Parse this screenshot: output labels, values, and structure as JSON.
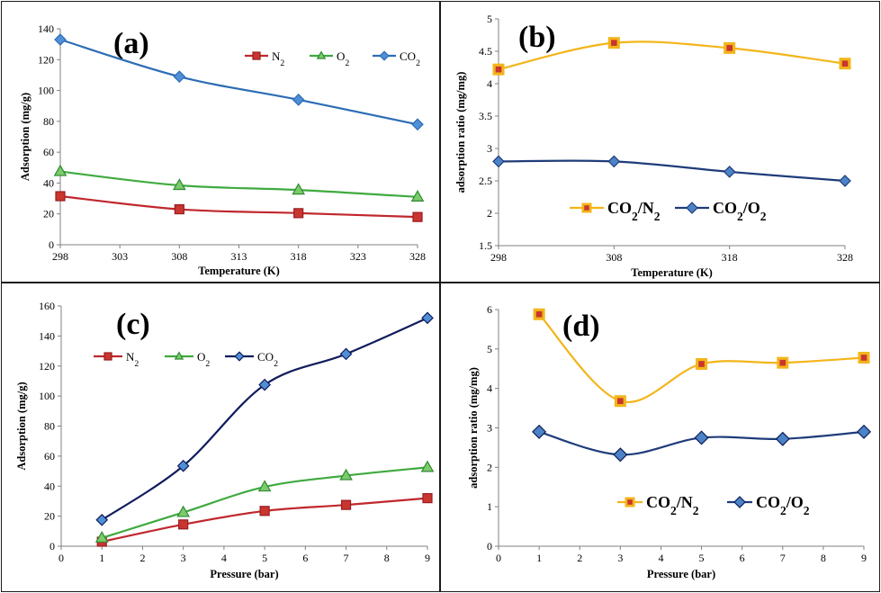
{
  "colors": {
    "N2": "#c0272d",
    "N2_marker": "#c8362f",
    "O2": "#3faa3f",
    "O2_marker": "#7ccb6a",
    "CO2": "#2d6db5",
    "CO2_marker": "#4f8fd6",
    "CO2_dark": "#101c5c",
    "ratio_N2": "#f3b51a",
    "ratio_N2_marker_fill": "#c8362f",
    "ratio_O2": "#1f3c7a",
    "ratio_O2_marker": "#4c83c7",
    "axis": "#808080"
  },
  "chart_data": [
    {
      "id": "a",
      "type": "line",
      "panel_label": "(a)",
      "xlabel": "Temperature (K)",
      "ylabel": "Adsorption (mg/g)",
      "xlim": [
        298,
        328
      ],
      "ylim": [
        0,
        140
      ],
      "xticks": [
        "298",
        "303",
        "308",
        "313",
        "318",
        "323",
        "328"
      ],
      "yticks": [
        "0",
        "20",
        "40",
        "60",
        "80",
        "100",
        "120",
        "140"
      ],
      "legend_position": "top-right",
      "series": [
        {
          "name": "N",
          "sub": "2",
          "x": [
            298,
            308,
            318,
            328
          ],
          "values": [
            31.5,
            23,
            20.5,
            18
          ]
        },
        {
          "name": "O",
          "sub": "2",
          "x": [
            298,
            308,
            318,
            328
          ],
          "values": [
            47.5,
            38.5,
            35.5,
            31
          ]
        },
        {
          "name": "CO",
          "sub": "2",
          "x": [
            298,
            308,
            318,
            328
          ],
          "values": [
            133,
            109,
            94,
            78
          ]
        }
      ]
    },
    {
      "id": "b",
      "type": "line",
      "panel_label": "(b)",
      "xlabel": "Temperature (K)",
      "ylabel": "adsorption ratio (mg/mg)",
      "xlim": [
        298,
        328
      ],
      "ylim": [
        1.5,
        5
      ],
      "xticks": [
        "298",
        "308",
        "318",
        "328"
      ],
      "yticks": [
        "1.5",
        "2",
        "2.5",
        "3",
        "3.5",
        "4",
        "4.5",
        "5"
      ],
      "legend_position": "lower-right",
      "series": [
        {
          "name": "CO",
          "sub": "2",
          "tail": "/N",
          "tailsub": "2",
          "x": [
            298,
            308,
            318,
            328
          ],
          "values": [
            4.22,
            4.63,
            4.55,
            4.31
          ]
        },
        {
          "name": "CO",
          "sub": "2",
          "tail": "/O",
          "tailsub": "2",
          "x": [
            298,
            308,
            318,
            328
          ],
          "values": [
            2.8,
            2.8,
            2.64,
            2.5
          ]
        }
      ]
    },
    {
      "id": "c",
      "type": "line",
      "panel_label": "(c)",
      "xlabel": "Pressure (bar)",
      "ylabel": "Adsorption (mg/g)",
      "xlim": [
        0,
        9
      ],
      "ylim": [
        0,
        160
      ],
      "xticks": [
        "0",
        "1",
        "2",
        "3",
        "4",
        "5",
        "6",
        "7",
        "8",
        "9"
      ],
      "yticks": [
        "0",
        "20",
        "40",
        "60",
        "80",
        "100",
        "120",
        "140",
        "160"
      ],
      "legend_position": "top-left",
      "series": [
        {
          "name": "N",
          "sub": "2",
          "x": [
            1,
            3,
            5,
            7,
            9
          ],
          "values": [
            3,
            14.5,
            23.5,
            27.5,
            32
          ]
        },
        {
          "name": "O",
          "sub": "2",
          "x": [
            1,
            3,
            5,
            7,
            9
          ],
          "values": [
            5.5,
            22.5,
            39.5,
            47,
            52.5
          ]
        },
        {
          "name": "CO",
          "sub": "2",
          "x": [
            1,
            3,
            5,
            7,
            9
          ],
          "values": [
            17.5,
            53.5,
            107.5,
            128,
            152
          ]
        }
      ]
    },
    {
      "id": "d",
      "type": "line",
      "panel_label": "(d)",
      "xlabel": "Pressure (bar)",
      "ylabel": "adsorption ratio (mg/mg)",
      "xlim": [
        0,
        9
      ],
      "ylim": [
        0,
        6
      ],
      "xticks": [
        "0",
        "1",
        "2",
        "3",
        "4",
        "5",
        "6",
        "7",
        "8",
        "9"
      ],
      "yticks": [
        "0",
        "1",
        "2",
        "3",
        "4",
        "5",
        "6"
      ],
      "legend_position": "lower-right",
      "series": [
        {
          "name": "CO",
          "sub": "2",
          "tail": "/N",
          "tailsub": "2",
          "x": [
            1,
            3,
            5,
            7,
            9
          ],
          "values": [
            5.88,
            3.68,
            4.62,
            4.65,
            4.78
          ]
        },
        {
          "name": "CO",
          "sub": "2",
          "tail": "/O",
          "tailsub": "2",
          "x": [
            1,
            3,
            5,
            7,
            9
          ],
          "values": [
            2.9,
            2.32,
            2.75,
            2.72,
            2.9
          ]
        }
      ]
    }
  ]
}
